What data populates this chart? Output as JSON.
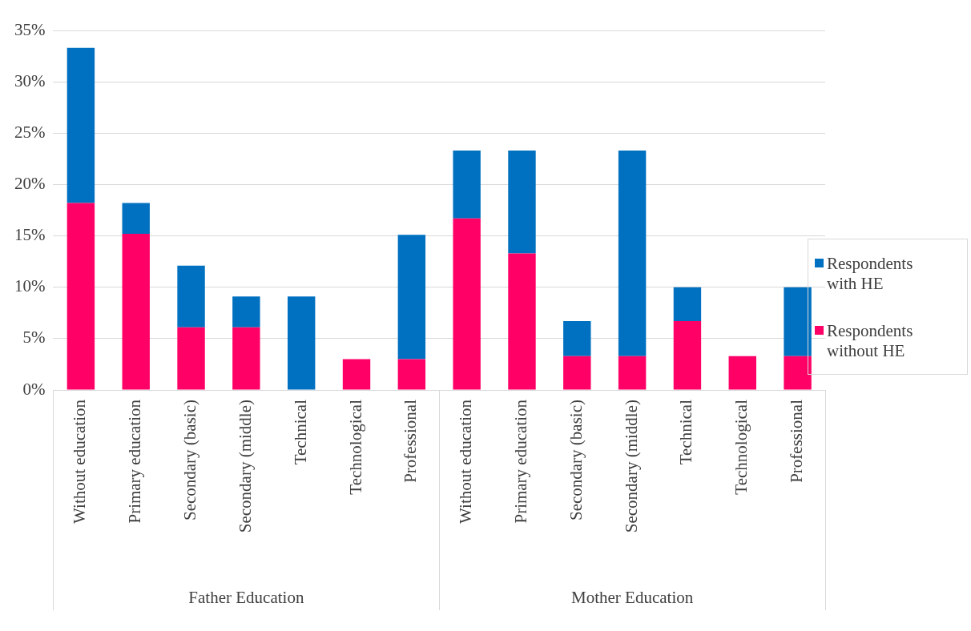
{
  "chart_data": {
    "type": "bar",
    "stacked": true,
    "categories": [
      "Without education",
      "Primary education",
      "Secondary (basic)",
      "Secondary (middle)",
      "Technical",
      "Technological",
      "Professional",
      "Without education",
      "Primary education",
      "Secondary (basic)",
      "Secondary (middle)",
      "Technical",
      "Technological",
      "Professional"
    ],
    "series": [
      {
        "name": "Respondents without HE",
        "color": "#ff0066",
        "values": [
          18.2,
          15.2,
          6.1,
          6.1,
          0,
          3.0,
          3.0,
          16.7,
          13.3,
          3.3,
          3.3,
          6.7,
          3.3,
          3.3
        ]
      },
      {
        "name": "Respondents with HE",
        "color": "#0070c0",
        "values": [
          15.1,
          3.0,
          6.0,
          3.0,
          9.1,
          0,
          12.1,
          6.6,
          10.0,
          3.4,
          20.0,
          3.3,
          0,
          6.7
        ]
      }
    ],
    "ylim": [
      0,
      35
    ],
    "yticks": [
      {
        "value": 0,
        "label": "0%"
      },
      {
        "value": 5,
        "label": "5%"
      },
      {
        "value": 10,
        "label": "10%"
      },
      {
        "value": 15,
        "label": "15%"
      },
      {
        "value": 20,
        "label": "20%"
      },
      {
        "value": 25,
        "label": "25%"
      },
      {
        "value": 30,
        "label": "30%"
      },
      {
        "value": 35,
        "label": "35%"
      }
    ],
    "annotations": [
      "Father Education",
      "Mother Education"
    ],
    "grid": "y",
    "legend": "right"
  }
}
